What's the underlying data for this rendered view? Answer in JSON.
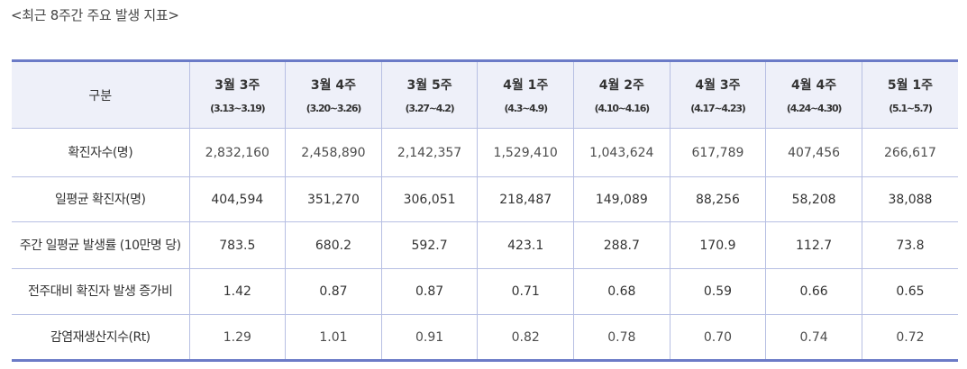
{
  "caption": "<최근 8주간 주요 발생 지표>",
  "table": {
    "corner_label": "구분",
    "columns": [
      {
        "week": "3월 3주",
        "range": "(3.13~3.19)"
      },
      {
        "week": "3월 4주",
        "range": "(3.20~3.26)"
      },
      {
        "week": "3월 5주",
        "range": "(3.27~4.2)"
      },
      {
        "week": "4월 1주",
        "range": "(4.3~4.9)"
      },
      {
        "week": "4월 2주",
        "range": "(4.10~4.16)"
      },
      {
        "week": "4월 3주",
        "range": "(4.17~4.23)"
      },
      {
        "week": "4월 4주",
        "range": "(4.24~4.30)"
      },
      {
        "week": "5월 1주",
        "range": "(5.1~5.7)"
      }
    ],
    "rows": [
      {
        "label": "확진자수(명)",
        "values": [
          "2,832,160",
          "2,458,890",
          "2,142,357",
          "1,529,410",
          "1,043,624",
          "617,789",
          "407,456",
          "266,617"
        ]
      },
      {
        "label": "일평균 확진자(명)",
        "values": [
          "404,594",
          "351,270",
          "306,051",
          "218,487",
          "149,089",
          "88,256",
          "58,208",
          "38,088"
        ]
      },
      {
        "label": "주간 일평균 발생률 (10만명 당)",
        "values": [
          "783.5",
          "680.2",
          "592.7",
          "423.1",
          "288.7",
          "170.9",
          "112.7",
          "73.8"
        ]
      },
      {
        "label": "전주대비 확진자 발생 증가비",
        "values": [
          "1.42",
          "0.87",
          "0.87",
          "0.71",
          "0.68",
          "0.59",
          "0.66",
          "0.65"
        ]
      },
      {
        "label": "감염재생산지수(Rt)",
        "values": [
          "1.29",
          "1.01",
          "0.91",
          "0.82",
          "0.78",
          "0.70",
          "0.74",
          "0.72"
        ]
      }
    ]
  },
  "colors": {
    "border_accent": "#6b7bc7",
    "header_bg": "#eef0f9",
    "grid": "#b7bfe3"
  }
}
